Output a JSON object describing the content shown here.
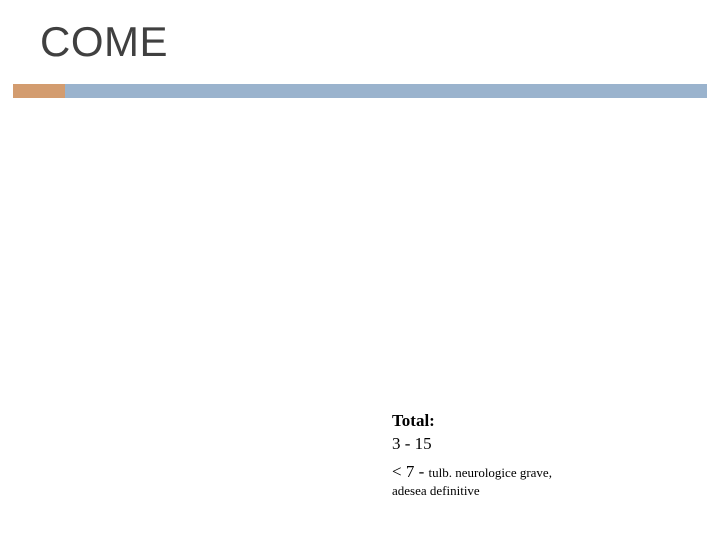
{
  "title": "COME",
  "underline": {
    "accent_color": "#d39c6f",
    "bar_color": "#9ab3cd"
  },
  "textbox": {
    "line1": "Total:",
    "line2": "3 - 15",
    "line3_lt": "< 7 - ",
    "line3_tail": "tulb. neurologice grave,",
    "line4": "adesea definitive"
  },
  "colors": {
    "background": "#ffffff",
    "title_color": "#404040",
    "text_color": "#000000"
  }
}
